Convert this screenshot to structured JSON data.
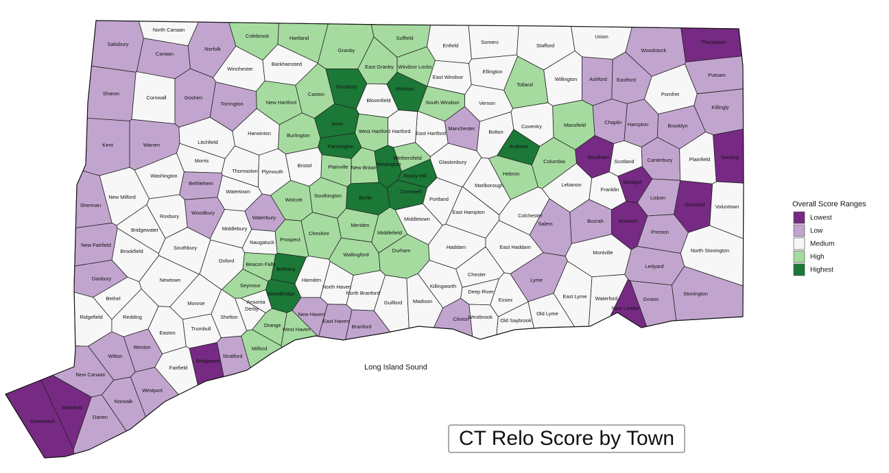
{
  "title": "CT Relo Score by Town",
  "annotation": "Long Island Sound",
  "legend": {
    "title": "Overall Score Ranges",
    "items": [
      {
        "label": "Lowest",
        "color": "#762a83"
      },
      {
        "label": "Low",
        "color": "#c2a5cf"
      },
      {
        "label": "Medium",
        "color": "#f7f7f7"
      },
      {
        "label": "High",
        "color": "#a6dba0"
      },
      {
        "label": "Highest",
        "color": "#1b7837"
      }
    ]
  },
  "towns": [
    {
      "name": "North Canaan",
      "score": "Medium"
    },
    {
      "name": "Salisbury",
      "score": "Low"
    },
    {
      "name": "Canaan",
      "score": "Low"
    },
    {
      "name": "Norfolk",
      "score": "Low"
    },
    {
      "name": "Colebrook",
      "score": "High"
    },
    {
      "name": "Hartland",
      "score": "High"
    },
    {
      "name": "Granby",
      "score": "High"
    },
    {
      "name": "Suffield",
      "score": "High"
    },
    {
      "name": "Enfield",
      "score": "Medium"
    },
    {
      "name": "Somers",
      "score": "Medium"
    },
    {
      "name": "Stafford",
      "score": "Medium"
    },
    {
      "name": "Union",
      "score": "Medium"
    },
    {
      "name": "Woodstock",
      "score": "Low"
    },
    {
      "name": "Thompson",
      "score": "Lowest"
    },
    {
      "name": "Winchester",
      "score": "Medium"
    },
    {
      "name": "Barkhamsted",
      "score": "Medium"
    },
    {
      "name": "East Granby",
      "score": "High"
    },
    {
      "name": "Windsor Locks",
      "score": "High"
    },
    {
      "name": "East Windsor",
      "score": "Medium"
    },
    {
      "name": "Ellington",
      "score": "Medium"
    },
    {
      "name": "Willington",
      "score": "Medium"
    },
    {
      "name": "Ashford",
      "score": "Low"
    },
    {
      "name": "Eastford",
      "score": "Low"
    },
    {
      "name": "Putnam",
      "score": "Low"
    },
    {
      "name": "Pomfret",
      "score": "Medium"
    },
    {
      "name": "Sharon",
      "score": "Low"
    },
    {
      "name": "Cornwall",
      "score": "Medium"
    },
    {
      "name": "Goshen",
      "score": "Low"
    },
    {
      "name": "Torrington",
      "score": "Low"
    },
    {
      "name": "New Hartford",
      "score": "High"
    },
    {
      "name": "Canton",
      "score": "High"
    },
    {
      "name": "Simsbury",
      "score": "Highest"
    },
    {
      "name": "Windsor",
      "score": "Highest"
    },
    {
      "name": "Bloomfield",
      "score": "Medium"
    },
    {
      "name": "South Windsor",
      "score": "High"
    },
    {
      "name": "Vernon",
      "score": "Medium"
    },
    {
      "name": "Tolland",
      "score": "High"
    },
    {
      "name": "Killingly",
      "score": "Low"
    },
    {
      "name": "Mansfield",
      "score": "High"
    },
    {
      "name": "Chaplin",
      "score": "Low"
    },
    {
      "name": "Hampton",
      "score": "Low"
    },
    {
      "name": "Brooklyn",
      "score": "Low"
    },
    {
      "name": "Coventry",
      "score": "Medium"
    },
    {
      "name": "Bolton",
      "score": "Medium"
    },
    {
      "name": "Manchester",
      "score": "Low"
    },
    {
      "name": "East Hartford",
      "score": "Medium"
    },
    {
      "name": "Hartford",
      "score": "Medium"
    },
    {
      "name": "West Hartford",
      "score": "High"
    },
    {
      "name": "Avon",
      "score": "Highest"
    },
    {
      "name": "Burlington",
      "score": "High"
    },
    {
      "name": "Harwinton",
      "score": "Medium"
    },
    {
      "name": "Litchfield",
      "score": "Medium"
    },
    {
      "name": "Kent",
      "score": "Low"
    },
    {
      "name": "Warren",
      "score": "Low"
    },
    {
      "name": "Andover",
      "score": "Highest"
    },
    {
      "name": "Farmington",
      "score": "Highest"
    },
    {
      "name": "Windham",
      "score": "Lowest"
    },
    {
      "name": "Scotland",
      "score": "Medium"
    },
    {
      "name": "Canterbury",
      "score": "Low"
    },
    {
      "name": "Plainfield",
      "score": "Medium"
    },
    {
      "name": "Sterling",
      "score": "Lowest"
    },
    {
      "name": "Washington",
      "score": "Medium"
    },
    {
      "name": "Morris",
      "score": "Medium"
    },
    {
      "name": "Thomaston",
      "score": "Medium"
    },
    {
      "name": "Plymouth",
      "score": "Medium"
    },
    {
      "name": "Bristol",
      "score": "Medium"
    },
    {
      "name": "Plainville",
      "score": "High"
    },
    {
      "name": "New Britain",
      "score": "High"
    },
    {
      "name": "Newington",
      "score": "Highest"
    },
    {
      "name": "Wethersfield",
      "score": "High"
    },
    {
      "name": "Glastonbury",
      "score": "Medium"
    },
    {
      "name": "Columbia",
      "score": "High"
    },
    {
      "name": "Rocky Hill",
      "score": "Highest"
    },
    {
      "name": "Hebron",
      "score": "High"
    },
    {
      "name": "Bethlehem",
      "score": "Low"
    },
    {
      "name": "Watertown",
      "score": "Medium"
    },
    {
      "name": "Marlborough",
      "score": "Medium"
    },
    {
      "name": "Lebanon",
      "score": "Medium"
    },
    {
      "name": "Franklin",
      "score": "Medium"
    },
    {
      "name": "Sprague",
      "score": "Lowest"
    },
    {
      "name": "New Milford",
      "score": "Medium"
    },
    {
      "name": "Sherman",
      "score": "Low"
    },
    {
      "name": "Wolcott",
      "score": "High"
    },
    {
      "name": "Southington",
      "score": "High"
    },
    {
      "name": "Berlin",
      "score": "Highest"
    },
    {
      "name": "Cromwell",
      "score": "Highest"
    },
    {
      "name": "Portland",
      "score": "Medium"
    },
    {
      "name": "Lisbon",
      "score": "Low"
    },
    {
      "name": "Griswold",
      "score": "Lowest"
    },
    {
      "name": "Voluntown",
      "score": "Medium"
    },
    {
      "name": "Roxbury",
      "score": "Medium"
    },
    {
      "name": "Woodbury",
      "score": "Low"
    },
    {
      "name": "Waterbury",
      "score": "Low"
    },
    {
      "name": "East Hampton",
      "score": "Medium"
    },
    {
      "name": "Colchester",
      "score": "Medium"
    },
    {
      "name": "Middlebury",
      "score": "Medium"
    },
    {
      "name": "Bridgewater",
      "score": "Medium"
    },
    {
      "name": "Meriden",
      "score": "High"
    },
    {
      "name": "Middletown",
      "score": "Medium"
    },
    {
      "name": "Bozrah",
      "score": "Low"
    },
    {
      "name": "Norwich",
      "score": "Lowest"
    },
    {
      "name": "Preston",
      "score": "Low"
    },
    {
      "name": "Salem",
      "score": "Low"
    },
    {
      "name": "Naugatuck",
      "score": "Medium"
    },
    {
      "name": "Prospect",
      "score": "High"
    },
    {
      "name": "Cheshire",
      "score": "High"
    },
    {
      "name": "Middlefield",
      "score": "High"
    },
    {
      "name": "New Fairfield",
      "score": "Low"
    },
    {
      "name": "Brookfield",
      "score": "Medium"
    },
    {
      "name": "Southbury",
      "score": "Medium"
    },
    {
      "name": "Oxford",
      "score": "Medium"
    },
    {
      "name": "Haddam",
      "score": "Medium"
    },
    {
      "name": "East Haddam",
      "score": "Medium"
    },
    {
      "name": "Montville",
      "score": "Medium"
    },
    {
      "name": "North Stonington",
      "score": "Medium"
    },
    {
      "name": "Beacon Falls",
      "score": "High"
    },
    {
      "name": "Bethany",
      "score": "Highest"
    },
    {
      "name": "Wallingford",
      "score": "High"
    },
    {
      "name": "Durham",
      "score": "High"
    },
    {
      "name": "Ledyard",
      "score": "Low"
    },
    {
      "name": "Danbury",
      "score": "Low"
    },
    {
      "name": "Newtown",
      "score": "Medium"
    },
    {
      "name": "Lyme",
      "score": "Low"
    },
    {
      "name": "Chester",
      "score": "Medium"
    },
    {
      "name": "Killingworth",
      "score": "Medium"
    },
    {
      "name": "Hamden",
      "score": "Medium"
    },
    {
      "name": "North Haven",
      "score": "Medium"
    },
    {
      "name": "Seymour",
      "score": "High"
    },
    {
      "name": "Woodbridge",
      "score": "Highest"
    },
    {
      "name": "North Branford",
      "score": "Medium"
    },
    {
      "name": "Deep River",
      "score": "Medium"
    },
    {
      "name": "Essex",
      "score": "Medium"
    },
    {
      "name": "Guilford",
      "score": "Medium"
    },
    {
      "name": "Madison",
      "score": "Medium"
    },
    {
      "name": "Bethel",
      "score": "Medium"
    },
    {
      "name": "Monroe",
      "score": "Medium"
    },
    {
      "name": "Ansonia",
      "score": "Medium"
    },
    {
      "name": "Derby",
      "score": "Medium"
    },
    {
      "name": "East Lyme",
      "score": "Medium"
    },
    {
      "name": "Waterford",
      "score": "Medium"
    },
    {
      "name": "Groton",
      "score": "Low"
    },
    {
      "name": "Stonington",
      "score": "Low"
    },
    {
      "name": "New London",
      "score": "Lowest"
    },
    {
      "name": "Ridgefield",
      "score": "Medium"
    },
    {
      "name": "Redding",
      "score": "Medium"
    },
    {
      "name": "Shelton",
      "score": "Medium"
    },
    {
      "name": "New Haven",
      "score": "Low"
    },
    {
      "name": "East Haven",
      "score": "Low"
    },
    {
      "name": "Old Saybrook",
      "score": "Medium"
    },
    {
      "name": "Old Lyme",
      "score": "Medium"
    },
    {
      "name": "Clinton",
      "score": "Low"
    },
    {
      "name": "Westbrook",
      "score": "Medium"
    },
    {
      "name": "Orange",
      "score": "High"
    },
    {
      "name": "West Haven",
      "score": "High"
    },
    {
      "name": "Branford",
      "score": "Low"
    },
    {
      "name": "Trumbull",
      "score": "Medium"
    },
    {
      "name": "Easton",
      "score": "Medium"
    },
    {
      "name": "Weston",
      "score": "Low"
    },
    {
      "name": "Wilton",
      "score": "Low"
    },
    {
      "name": "Milford",
      "score": "High"
    },
    {
      "name": "Stratford",
      "score": "Low"
    },
    {
      "name": "Bridgeport",
      "score": "Lowest"
    },
    {
      "name": "Fairfield",
      "score": "Medium"
    },
    {
      "name": "New Canaan",
      "score": "Low"
    },
    {
      "name": "Westport",
      "score": "Low"
    },
    {
      "name": "Stamford",
      "score": "Lowest"
    },
    {
      "name": "Norwalk",
      "score": "Low"
    },
    {
      "name": "Darien",
      "score": "Low"
    },
    {
      "name": "Greenwich",
      "score": "Lowest"
    }
  ]
}
